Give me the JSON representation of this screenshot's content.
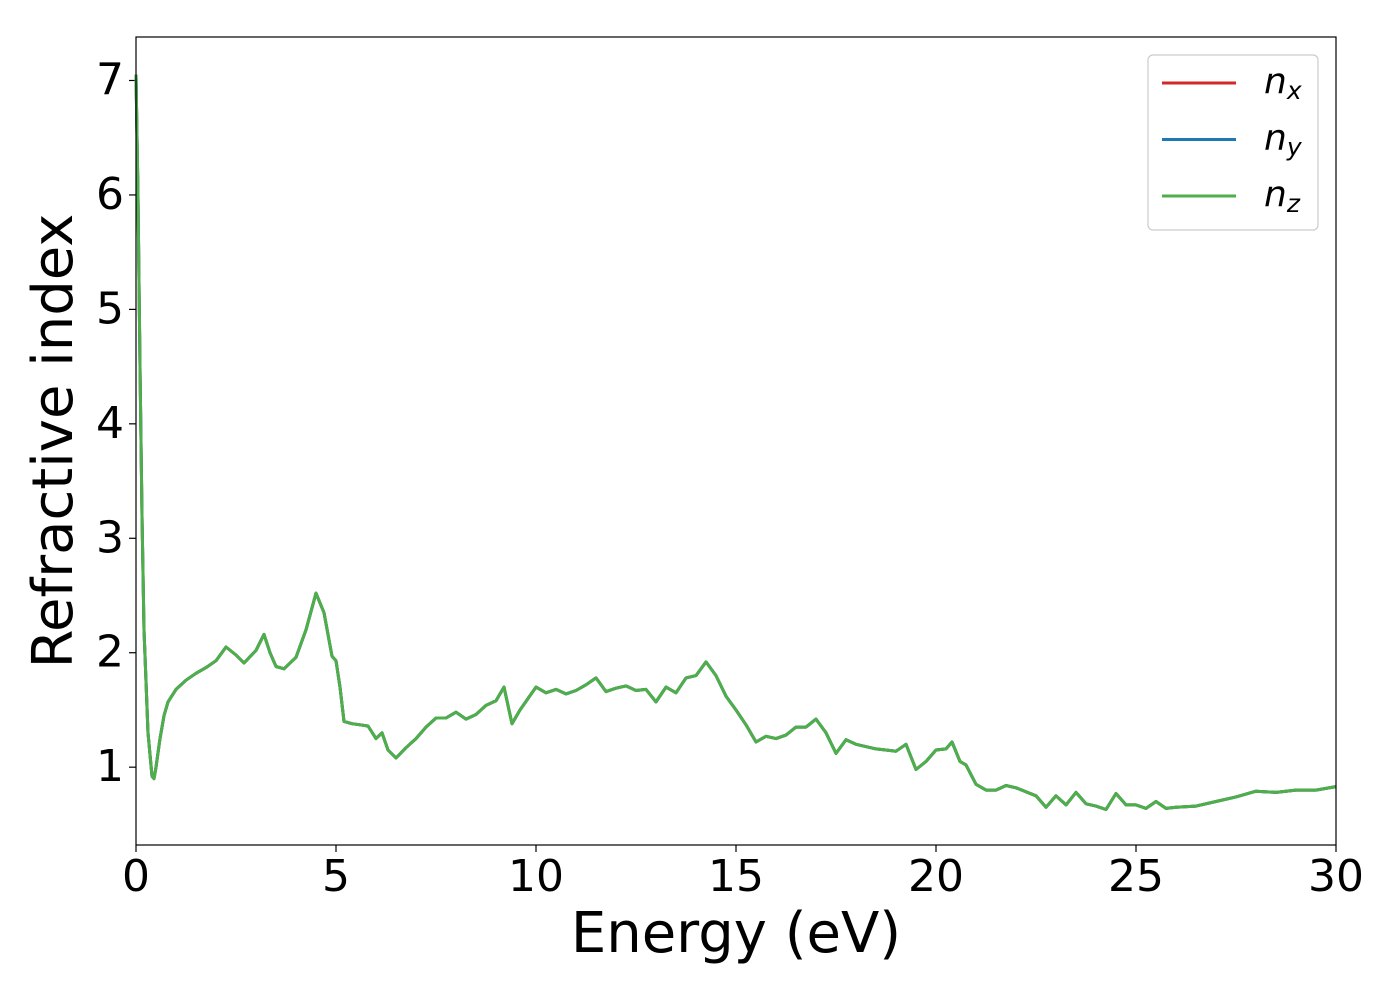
{
  "chart_data": {
    "type": "line",
    "xlabel": "Energy (eV)",
    "ylabel": "Refractive index",
    "x": [
      0,
      0.05,
      0.1,
      0.15,
      0.2,
      0.3,
      0.4,
      0.45,
      0.5,
      0.6,
      0.7,
      0.8,
      1.0,
      1.25,
      1.5,
      1.75,
      2.0,
      2.25,
      2.5,
      2.7,
      3.0,
      3.2,
      3.35,
      3.5,
      3.7,
      4.0,
      4.25,
      4.5,
      4.7,
      4.9,
      5.0,
      5.1,
      5.2,
      5.4,
      5.6,
      5.8,
      6.0,
      6.15,
      6.3,
      6.5,
      6.75,
      7.0,
      7.25,
      7.5,
      7.75,
      8.0,
      8.25,
      8.5,
      8.75,
      9.0,
      9.2,
      9.4,
      9.6,
      9.8,
      10,
      10.25,
      10.5,
      10.75,
      11,
      11.25,
      11.5,
      11.75,
      12,
      12.25,
      12.5,
      12.75,
      13,
      13.25,
      13.5,
      13.75,
      14,
      14.25,
      14.5,
      14.75,
      15,
      15.25,
      15.5,
      15.75,
      16,
      16.25,
      16.5,
      16.75,
      17,
      17.25,
      17.5,
      17.75,
      18,
      18.5,
      19,
      19.25,
      19.5,
      19.75,
      20,
      20.25,
      20.4,
      20.6,
      20.75,
      21,
      21.25,
      21.5,
      21.75,
      22,
      22.5,
      22.75,
      23,
      23.25,
      23.5,
      23.75,
      24,
      24.25,
      24.5,
      24.75,
      25,
      25.25,
      25.5,
      25.75,
      26,
      26.5,
      27,
      27.5,
      28,
      28.5,
      29,
      29.5,
      30
    ],
    "series": [
      {
        "name": "n_x",
        "color": "#d62728",
        "values": [
          7.05,
          6.0,
          4.5,
          3.2,
          2.2,
          1.3,
          0.92,
          0.9,
          1.0,
          1.25,
          1.45,
          1.57,
          1.68,
          1.76,
          1.82,
          1.87,
          1.93,
          2.05,
          1.98,
          1.91,
          2.02,
          2.16,
          2.0,
          1.88,
          1.86,
          1.96,
          2.2,
          2.52,
          2.35,
          1.97,
          1.93,
          1.7,
          1.4,
          1.38,
          1.37,
          1.36,
          1.25,
          1.3,
          1.15,
          1.08,
          1.17,
          1.25,
          1.35,
          1.43,
          1.43,
          1.48,
          1.42,
          1.46,
          1.54,
          1.58,
          1.7,
          1.38,
          1.5,
          1.6,
          1.7,
          1.65,
          1.68,
          1.64,
          1.67,
          1.72,
          1.78,
          1.66,
          1.69,
          1.71,
          1.67,
          1.68,
          1.57,
          1.7,
          1.65,
          1.78,
          1.8,
          1.92,
          1.8,
          1.62,
          1.5,
          1.37,
          1.22,
          1.27,
          1.25,
          1.28,
          1.35,
          1.35,
          1.42,
          1.3,
          1.12,
          1.24,
          1.2,
          1.16,
          1.14,
          1.2,
          0.98,
          1.05,
          1.15,
          1.16,
          1.22,
          1.05,
          1.02,
          0.85,
          0.8,
          0.8,
          0.84,
          0.82,
          0.75,
          0.65,
          0.75,
          0.67,
          0.78,
          0.68,
          0.66,
          0.63,
          0.77,
          0.67,
          0.67,
          0.64,
          0.7,
          0.64,
          0.65,
          0.66,
          0.7,
          0.74,
          0.79,
          0.78,
          0.8,
          0.8,
          0.83
        ]
      },
      {
        "name": "n_y",
        "color": "#1f77b4",
        "values": [
          7.05,
          6.0,
          4.5,
          3.2,
          2.2,
          1.3,
          0.92,
          0.9,
          1.0,
          1.25,
          1.45,
          1.57,
          1.68,
          1.76,
          1.82,
          1.87,
          1.93,
          2.05,
          1.98,
          1.91,
          2.02,
          2.16,
          2.0,
          1.88,
          1.86,
          1.96,
          2.2,
          2.52,
          2.35,
          1.97,
          1.93,
          1.7,
          1.4,
          1.38,
          1.37,
          1.36,
          1.25,
          1.3,
          1.15,
          1.08,
          1.17,
          1.25,
          1.35,
          1.43,
          1.43,
          1.48,
          1.42,
          1.46,
          1.54,
          1.58,
          1.7,
          1.38,
          1.5,
          1.6,
          1.7,
          1.65,
          1.68,
          1.64,
          1.67,
          1.72,
          1.78,
          1.66,
          1.69,
          1.71,
          1.67,
          1.68,
          1.57,
          1.7,
          1.65,
          1.78,
          1.8,
          1.92,
          1.8,
          1.62,
          1.5,
          1.37,
          1.22,
          1.27,
          1.25,
          1.28,
          1.35,
          1.35,
          1.42,
          1.3,
          1.12,
          1.24,
          1.2,
          1.16,
          1.14,
          1.2,
          0.98,
          1.05,
          1.15,
          1.16,
          1.22,
          1.05,
          1.02,
          0.85,
          0.8,
          0.8,
          0.84,
          0.82,
          0.75,
          0.65,
          0.75,
          0.67,
          0.78,
          0.68,
          0.66,
          0.63,
          0.77,
          0.67,
          0.67,
          0.64,
          0.7,
          0.64,
          0.65,
          0.66,
          0.7,
          0.74,
          0.79,
          0.78,
          0.8,
          0.8,
          0.83
        ]
      },
      {
        "name": "n_z",
        "color": "#4daf4a",
        "values": [
          7.05,
          6.0,
          4.5,
          3.2,
          2.2,
          1.3,
          0.92,
          0.9,
          1.0,
          1.25,
          1.45,
          1.57,
          1.68,
          1.76,
          1.82,
          1.87,
          1.93,
          2.05,
          1.98,
          1.91,
          2.02,
          2.16,
          2.0,
          1.88,
          1.86,
          1.96,
          2.2,
          2.52,
          2.35,
          1.97,
          1.93,
          1.7,
          1.4,
          1.38,
          1.37,
          1.36,
          1.25,
          1.3,
          1.15,
          1.08,
          1.17,
          1.25,
          1.35,
          1.43,
          1.43,
          1.48,
          1.42,
          1.46,
          1.54,
          1.58,
          1.7,
          1.38,
          1.5,
          1.6,
          1.7,
          1.65,
          1.68,
          1.64,
          1.67,
          1.72,
          1.78,
          1.66,
          1.69,
          1.71,
          1.67,
          1.68,
          1.57,
          1.7,
          1.65,
          1.78,
          1.8,
          1.92,
          1.8,
          1.62,
          1.5,
          1.37,
          1.22,
          1.27,
          1.25,
          1.28,
          1.35,
          1.35,
          1.42,
          1.3,
          1.12,
          1.24,
          1.2,
          1.16,
          1.14,
          1.2,
          0.98,
          1.05,
          1.15,
          1.16,
          1.22,
          1.05,
          1.02,
          0.85,
          0.8,
          0.8,
          0.84,
          0.82,
          0.75,
          0.65,
          0.75,
          0.67,
          0.78,
          0.68,
          0.66,
          0.63,
          0.77,
          0.67,
          0.67,
          0.64,
          0.7,
          0.64,
          0.65,
          0.66,
          0.7,
          0.74,
          0.79,
          0.78,
          0.8,
          0.8,
          0.83
        ]
      }
    ],
    "xlim": [
      0,
      30
    ],
    "xticks": [
      0,
      5,
      10,
      15,
      20,
      25,
      30
    ],
    "ylim": [
      0.32,
      7.38
    ],
    "yticks": [
      1,
      2,
      3,
      4,
      5,
      6,
      7
    ],
    "grid": false,
    "legend": "upper right"
  }
}
